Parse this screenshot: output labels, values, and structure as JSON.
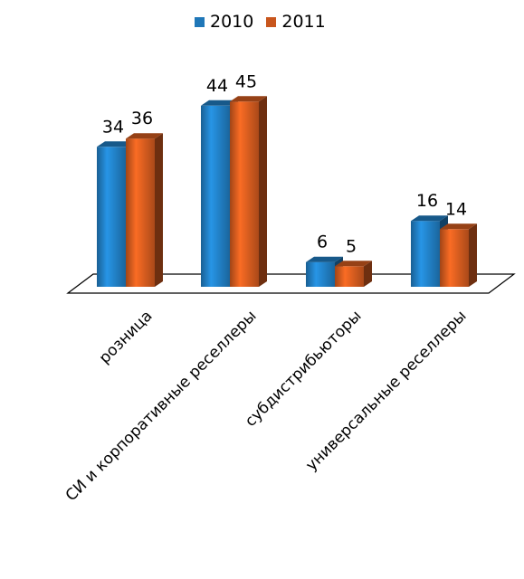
{
  "chart_data": {
    "type": "bar",
    "categories": [
      "розница",
      "СИ и корпоративные реселлеры",
      "субдистрибьюторы",
      "универсальные реселлеры"
    ],
    "series": [
      {
        "name": "2010",
        "values": [
          34,
          44,
          6,
          16
        ]
      },
      {
        "name": "2011",
        "values": [
          36,
          45,
          5,
          14
        ]
      }
    ],
    "legend": "top",
    "grid": false,
    "ylim": [
      0,
      45
    ]
  },
  "colors": {
    "series_2010": "#1f77b8",
    "series_2011": "#c8561d"
  }
}
